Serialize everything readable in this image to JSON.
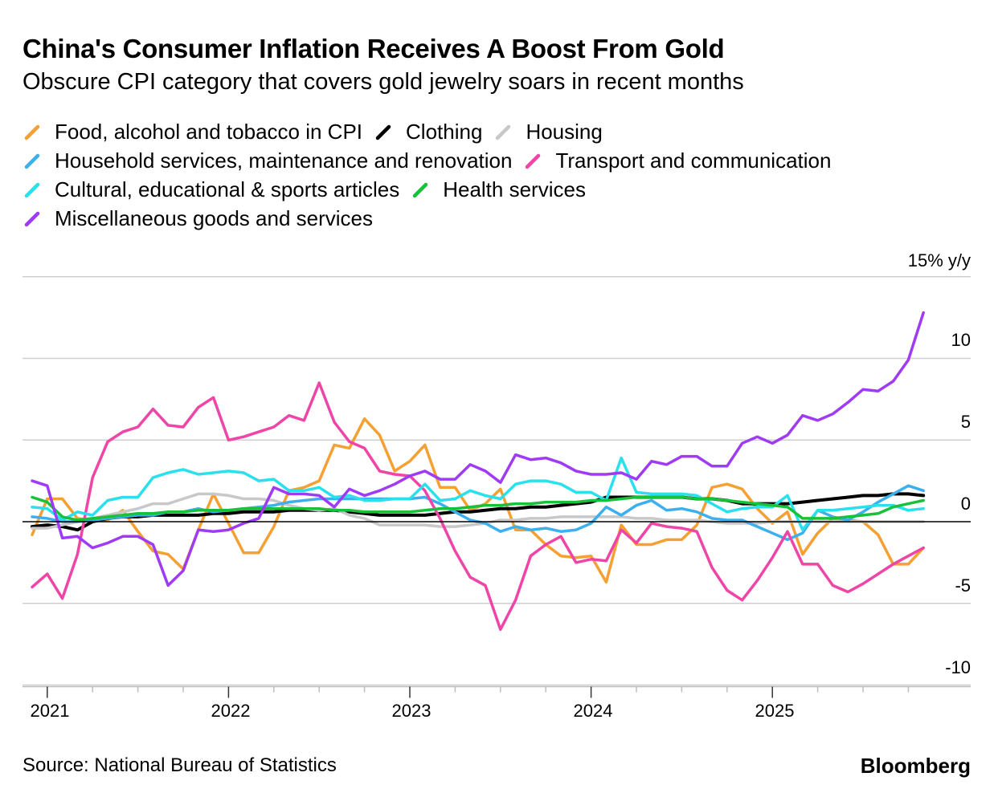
{
  "title": "China's Consumer Inflation Receives A Boost From Gold",
  "subtitle": "Obscure CPI category that covers gold jewelry soars in recent months",
  "source": "Source: National Bureau of Statistics",
  "brand": "Bloomberg",
  "chart_data": {
    "type": "line",
    "title": "China's Consumer Inflation Receives A Boost From Gold",
    "subtitle": "Obscure CPI category that covers gold jewelry soars in recent months",
    "ylabel": "15% y/y",
    "y_ticks": [
      "15% y/y",
      "10",
      "5",
      "0",
      "-5",
      "-10"
    ],
    "y_tick_values": [
      15,
      10,
      5,
      0,
      -5,
      -10
    ],
    "ylim": [
      -10,
      15
    ],
    "x_ticks": [
      "2021",
      "2022",
      "2023",
      "2024",
      "2025"
    ],
    "x_start": "2020-12",
    "x_end": "2025-11",
    "frequency": "monthly",
    "grid": true,
    "legend_position": "top",
    "series": [
      {
        "name": "Food, alcohol and tobacco in CPI",
        "color": "#f5a033",
        "values": [
          -0.8,
          1.4,
          1.4,
          0.2,
          0.1,
          0.1,
          0.7,
          -0.6,
          -1.8,
          -2.0,
          -2.9,
          -0.5,
          1.7,
          -0.1,
          -1.9,
          -1.9,
          -0.3,
          1.9,
          2.1,
          2.5,
          4.7,
          4.5,
          6.3,
          5.3,
          3.1,
          3.7,
          4.7,
          2.1,
          2.1,
          0.7,
          1.1,
          2.0,
          -0.5,
          -0.5,
          -1.4,
          -2.1,
          -2.2,
          -2.1,
          -3.7,
          -0.2,
          -1.4,
          -1.4,
          -1.1,
          -1.1,
          -0.2,
          2.1,
          2.3,
          2.0,
          0.8,
          -0.1,
          0.6,
          -2.0,
          -0.7,
          0.2,
          0.1,
          0.0,
          -0.8,
          -2.6,
          -2.6,
          -1.6
        ]
      },
      {
        "name": "Clothing",
        "color": "#000000",
        "values": [
          -0.3,
          -0.2,
          -0.3,
          -0.5,
          0.0,
          0.2,
          0.3,
          0.3,
          0.4,
          0.4,
          0.4,
          0.4,
          0.5,
          0.5,
          0.6,
          0.6,
          0.6,
          0.7,
          0.7,
          0.7,
          0.7,
          0.6,
          0.5,
          0.4,
          0.4,
          0.4,
          0.4,
          0.5,
          0.6,
          0.6,
          0.7,
          0.8,
          0.8,
          0.9,
          0.9,
          1.0,
          1.1,
          1.2,
          1.5,
          1.5,
          1.5,
          1.5,
          1.5,
          1.5,
          1.4,
          1.4,
          1.3,
          1.1,
          1.1,
          1.1,
          1.1,
          1.2,
          1.3,
          1.4,
          1.5,
          1.6,
          1.6,
          1.7,
          1.7,
          1.6
        ]
      },
      {
        "name": "Housing",
        "color": "#c8c8c8",
        "values": [
          -0.4,
          -0.4,
          -0.2,
          0.0,
          0.2,
          0.4,
          0.6,
          0.8,
          1.1,
          1.1,
          1.4,
          1.7,
          1.7,
          1.6,
          1.4,
          1.4,
          1.3,
          1.0,
          0.8,
          0.7,
          0.8,
          0.4,
          0.2,
          -0.2,
          -0.2,
          -0.2,
          -0.2,
          -0.3,
          -0.3,
          -0.2,
          -0.1,
          0.1,
          0.1,
          0.2,
          0.2,
          0.3,
          0.3,
          0.3,
          0.3,
          0.3,
          0.2,
          0.2,
          0.1,
          0.1,
          0.1,
          0.0,
          -0.1,
          -0.1,
          -0.1,
          0.0,
          0.0,
          0.0,
          0.0,
          0.0,
          0.0,
          0.0,
          0.0,
          0.0,
          0.0,
          0.0
        ]
      },
      {
        "name": "Household services, maintenance and renovation",
        "color": "#3cb0ef",
        "values": [
          0.3,
          0.2,
          0.0,
          0.0,
          0.1,
          0.2,
          0.3,
          0.4,
          0.4,
          0.6,
          0.6,
          0.8,
          0.6,
          0.7,
          0.8,
          0.9,
          1.0,
          1.2,
          1.3,
          1.4,
          1.4,
          1.4,
          1.4,
          1.4,
          1.4,
          1.4,
          1.5,
          1.1,
          0.6,
          0.1,
          -0.1,
          -0.6,
          -0.3,
          -0.5,
          -0.4,
          -0.6,
          -0.5,
          -0.1,
          0.9,
          0.4,
          1.0,
          1.3,
          0.7,
          0.8,
          0.6,
          0.2,
          0.1,
          0.1,
          -0.3,
          -0.7,
          -1.1,
          -0.7,
          0.7,
          0.3,
          0.1,
          0.6,
          1.2,
          1.7,
          2.2,
          1.9
        ]
      },
      {
        "name": "Transport and communication",
        "color": "#ee45a7",
        "values": [
          -4.0,
          -3.2,
          -4.7,
          -2.0,
          2.7,
          4.9,
          5.5,
          5.8,
          6.9,
          5.9,
          5.8,
          7.0,
          7.6,
          5.0,
          5.2,
          5.5,
          5.8,
          6.5,
          6.2,
          8.5,
          6.1,
          4.9,
          4.5,
          3.1,
          2.9,
          2.8,
          1.9,
          0.2,
          -1.8,
          -3.4,
          -3.9,
          -6.6,
          -4.8,
          -2.1,
          -1.4,
          -0.9,
          -2.5,
          -2.3,
          -2.4,
          -0.5,
          -1.3,
          -0.1,
          -0.3,
          -0.4,
          -0.6,
          -2.8,
          -4.2,
          -4.8,
          -3.6,
          -2.2,
          -0.6,
          -2.6,
          -2.6,
          -3.9,
          -4.3,
          -3.8,
          -3.2,
          -2.6,
          -2.1,
          -1.6
        ]
      },
      {
        "name": "Cultural, educational & sports articles",
        "color": "#2ae0ec",
        "values": [
          0.9,
          0.8,
          0.1,
          0.6,
          0.4,
          1.3,
          1.5,
          1.5,
          2.7,
          3.0,
          3.2,
          2.9,
          3.0,
          3.1,
          3.0,
          2.5,
          2.6,
          1.9,
          1.9,
          2.1,
          1.5,
          1.6,
          1.3,
          1.3,
          1.4,
          1.4,
          2.3,
          1.3,
          1.4,
          1.9,
          1.6,
          1.4,
          2.3,
          2.5,
          2.5,
          2.3,
          1.8,
          1.8,
          1.3,
          3.9,
          1.8,
          1.7,
          1.7,
          1.7,
          1.6,
          1.1,
          0.6,
          0.8,
          0.9,
          0.9,
          1.6,
          -0.5,
          0.7,
          0.7,
          0.8,
          0.9,
          1.0,
          1.0,
          0.7,
          0.8
        ]
      },
      {
        "name": "Health services",
        "color": "#17c23a",
        "values": [
          1.5,
          1.2,
          0.3,
          0.1,
          0.2,
          0.3,
          0.4,
          0.5,
          0.5,
          0.6,
          0.6,
          0.7,
          0.7,
          0.7,
          0.8,
          0.8,
          0.8,
          0.8,
          0.8,
          0.8,
          0.7,
          0.7,
          0.6,
          0.6,
          0.6,
          0.6,
          0.7,
          0.8,
          0.8,
          0.9,
          1.0,
          1.0,
          1.1,
          1.1,
          1.2,
          1.2,
          1.2,
          1.3,
          1.3,
          1.4,
          1.5,
          1.5,
          1.5,
          1.5,
          1.4,
          1.4,
          1.3,
          1.2,
          1.1,
          1.0,
          0.9,
          0.2,
          0.2,
          0.2,
          0.3,
          0.4,
          0.5,
          0.9,
          1.1,
          1.3
        ]
      },
      {
        "name": "Miscellaneous goods and services",
        "color": "#9f3bf5",
        "values": [
          2.5,
          2.2,
          -1.0,
          -0.9,
          -1.6,
          -1.3,
          -0.9,
          -0.9,
          -1.4,
          -3.9,
          -3.0,
          -0.5,
          -0.6,
          -0.5,
          -0.1,
          0.2,
          2.1,
          1.7,
          1.7,
          1.6,
          0.9,
          2.0,
          1.6,
          1.9,
          2.3,
          2.8,
          3.1,
          2.6,
          2.6,
          3.5,
          3.1,
          2.4,
          4.1,
          3.8,
          3.9,
          3.6,
          3.1,
          2.9,
          2.9,
          3.0,
          2.6,
          3.7,
          3.5,
          4.0,
          4.0,
          3.4,
          3.4,
          4.8,
          5.2,
          4.8,
          5.3,
          6.5,
          6.2,
          6.6,
          7.3,
          8.1,
          8.0,
          8.6,
          9.9,
          12.8
        ]
      }
    ]
  }
}
